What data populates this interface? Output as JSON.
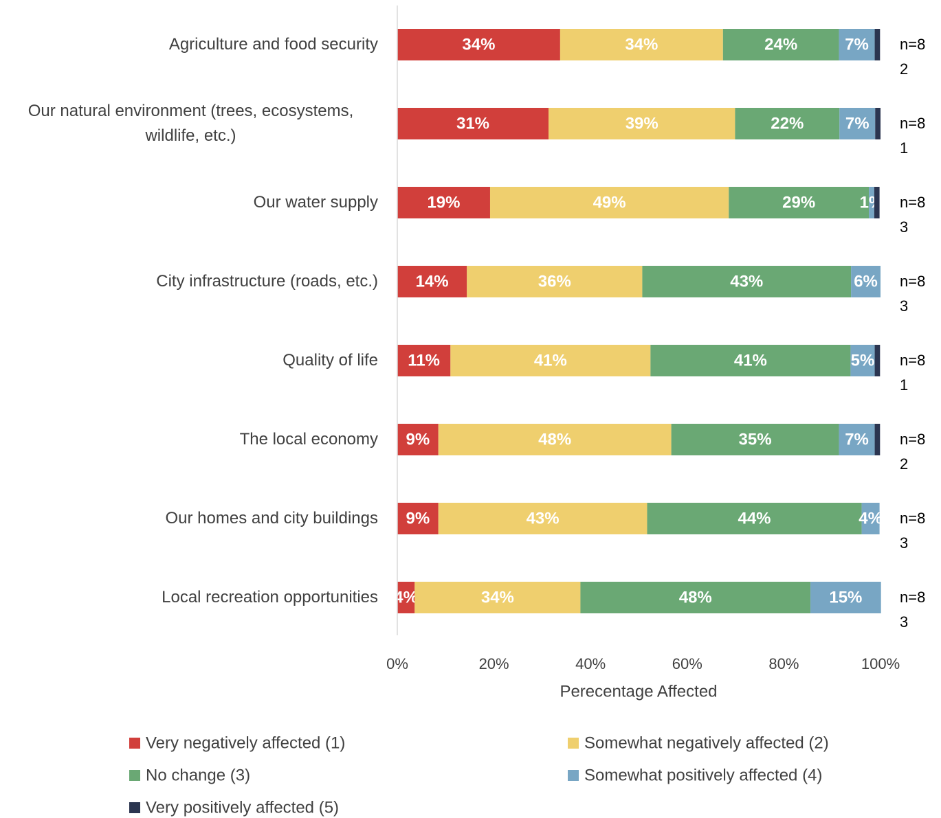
{
  "chart_data": {
    "type": "stacked_barh",
    "categories": [
      "Agriculture and food security",
      "Our natural environment (trees, ecosystems, wildlife, etc.)",
      "Our water supply",
      "City infrastructure (roads, etc.)",
      "Quality of life",
      "The local economy",
      "Our homes and city buildings",
      "Local recreation opportunities"
    ],
    "series": [
      {
        "name": "Very negatively affected (1)",
        "color": "#d13f3b",
        "values": [
          33.7,
          31.3,
          19.2,
          14.4,
          11.0,
          8.5,
          8.5,
          3.6
        ],
        "value_labels": [
          "34%",
          "31%",
          "19%",
          "14%",
          "11%",
          "9%",
          "9%",
          "4%"
        ]
      },
      {
        "name": "Somewhat negatively affected (2)",
        "color": "#efcf6e",
        "values": [
          33.7,
          38.6,
          49.4,
          36.3,
          41.4,
          48.2,
          43.2,
          34.3
        ],
        "value_labels": [
          "34%",
          "39%",
          "49%",
          "36%",
          "41%",
          "48%",
          "43%",
          "34%"
        ]
      },
      {
        "name": "No change (3)",
        "color": "#6aa874",
        "values": [
          24.0,
          21.6,
          29.0,
          43.2,
          41.4,
          34.7,
          44.4,
          47.6
        ],
        "value_labels": [
          "24%",
          "22%",
          "29%",
          "43%",
          "41%",
          "35%",
          "44%",
          "48%"
        ]
      },
      {
        "name": "Somewhat positively affected (4)",
        "color": "#78a6c4",
        "values": [
          7.4,
          7.4,
          1.1,
          6.1,
          5.0,
          7.4,
          3.7,
          14.6
        ],
        "value_labels": [
          "7%",
          "7%",
          "1%",
          "6%",
          "5%",
          "7%",
          "4%",
          "15%"
        ]
      },
      {
        "name": "Very positively affected (5)",
        "color": "#2b3550",
        "values": [
          1.1,
          1.1,
          1.1,
          0,
          1.1,
          1.1,
          0,
          0
        ]
      }
    ],
    "n_labels": [
      "n=82",
      "n=81",
      "n=83",
      "n=83",
      "n=81",
      "n=82",
      "n=83",
      "n=83"
    ],
    "xlabel": "Perecentage Affected",
    "xlim": [
      0,
      100
    ],
    "xticks": [
      {
        "value": 0,
        "label": "0%"
      },
      {
        "value": 20,
        "label": "20%"
      },
      {
        "value": 40,
        "label": "40%"
      },
      {
        "value": 60,
        "label": "60%"
      },
      {
        "value": 80,
        "label": "80%"
      },
      {
        "value": 100,
        "label": "100%"
      }
    ],
    "legend": "bottom"
  }
}
